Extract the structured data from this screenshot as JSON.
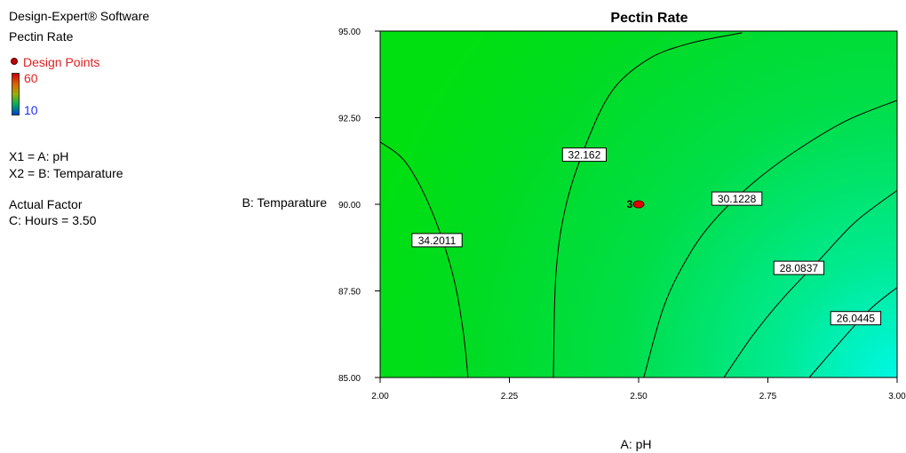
{
  "software": "Design-Expert® Software",
  "response_name": "Pectin Rate",
  "legend": {
    "design_points_label": "Design Points",
    "color_max": "60",
    "color_min": "10"
  },
  "factors": {
    "x1": "X1 = A: pH",
    "x2": "X2 = B: Temparature",
    "actual_factor_title": "Actual Factor",
    "actual_factor_value": "C:  Hours = 3.50"
  },
  "chart_data": {
    "type": "contour",
    "title": "Pectin Rate",
    "xlabel": "A: pH",
    "ylabel": "B: Temparature",
    "xlim": [
      2.0,
      3.0
    ],
    "ylim": [
      85.0,
      95.0
    ],
    "x_ticks": [
      "2.00",
      "2.25",
      "2.50",
      "2.75",
      "3.00"
    ],
    "y_ticks": [
      "85.00",
      "87.50",
      "90.00",
      "92.50",
      "95.00"
    ],
    "contours": [
      {
        "label": "34.2011",
        "label_at": [
          2.11,
          88.95
        ],
        "points": [
          [
            2.0,
            91.8
          ],
          [
            2.05,
            91.2
          ],
          [
            2.1,
            89.8
          ],
          [
            2.14,
            88.0
          ],
          [
            2.16,
            86.4
          ],
          [
            2.17,
            85.0
          ]
        ]
      },
      {
        "label": "32.162",
        "label_at": [
          2.395,
          91.42
        ],
        "points": [
          [
            2.335,
            85.0
          ],
          [
            2.34,
            88.0
          ],
          [
            2.36,
            90.0
          ],
          [
            2.4,
            91.8
          ],
          [
            2.45,
            93.3
          ],
          [
            2.52,
            94.2
          ],
          [
            2.6,
            94.65
          ],
          [
            2.7,
            94.95
          ]
        ]
      },
      {
        "label": "30.1228",
        "label_at": [
          2.69,
          90.15
        ],
        "points": [
          [
            2.51,
            85.0
          ],
          [
            2.55,
            87.1
          ],
          [
            2.6,
            88.6
          ],
          [
            2.65,
            89.6
          ],
          [
            2.72,
            90.6
          ],
          [
            2.8,
            91.5
          ],
          [
            2.9,
            92.4
          ],
          [
            3.0,
            93.0
          ]
        ]
      },
      {
        "label": "28.0837",
        "label_at": [
          2.81,
          88.15
        ],
        "points": [
          [
            2.665,
            85.0
          ],
          [
            2.72,
            86.2
          ],
          [
            2.78,
            87.3
          ],
          [
            2.85,
            88.4
          ],
          [
            2.92,
            89.5
          ],
          [
            3.0,
            90.4
          ]
        ]
      },
      {
        "label": "26.0445",
        "label_at": [
          2.92,
          86.7
        ],
        "points": [
          [
            2.83,
            85.0
          ],
          [
            2.9,
            86.2
          ],
          [
            2.95,
            87.0
          ],
          [
            3.0,
            87.6
          ]
        ]
      }
    ],
    "design_points": [
      {
        "x": 2.5,
        "y": 90.0,
        "label": "3"
      }
    ],
    "colors": {
      "low": "#00f5e0",
      "mid": "#00dc20",
      "high": "#00e000"
    }
  }
}
